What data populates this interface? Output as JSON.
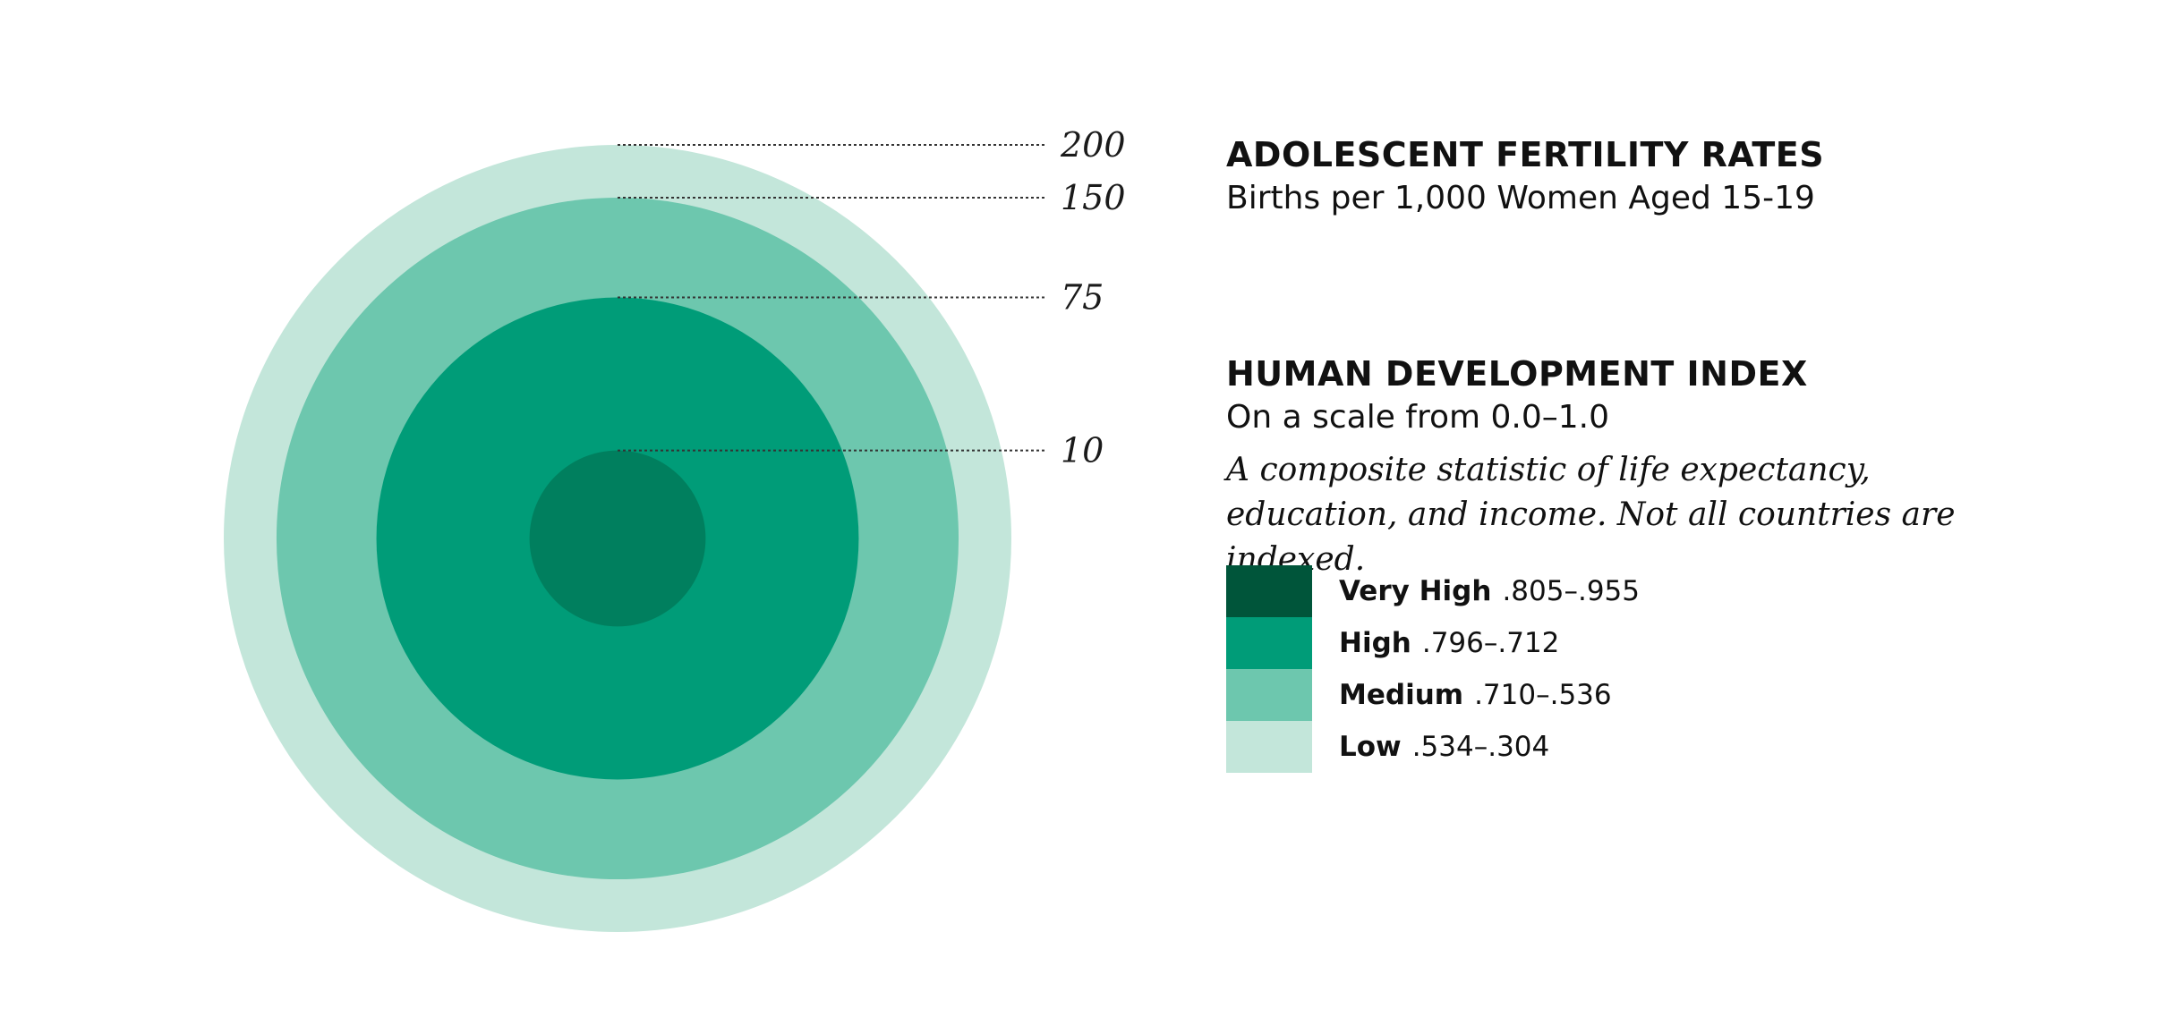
{
  "colors": {
    "very_high": "#00553a",
    "high_inner": "#007f5e",
    "high": "#009c78",
    "medium": "#6dc7ae",
    "low": "#c3e6da"
  },
  "chart_data": {
    "type": "proportional-area (concentric circles)",
    "scale": [
      {
        "value": 200,
        "label": "200"
      },
      {
        "value": 150,
        "label": "150"
      },
      {
        "value": 75,
        "label": "75"
      },
      {
        "value": 10,
        "label": "10"
      }
    ],
    "circle_colors": [
      "#c3e6da",
      "#6dc7ae",
      "#009c78",
      "#007f5e"
    ]
  },
  "fertility": {
    "title": "ADOLESCENT FERTILITY RATES",
    "subtitle": "Births per 1,000 Women Aged 15-19"
  },
  "hdi": {
    "title": "HUMAN DEVELOPMENT INDEX",
    "subtitle": "On a scale from 0.0–1.0",
    "description": "A composite statistic of life expectancy, education, and income. Not all countries are indexed.",
    "legend": [
      {
        "name": "Very High",
        "range": ".805–.955",
        "color": "#00553a"
      },
      {
        "name": "High",
        "range": ".796–.712",
        "color": "#009c78"
      },
      {
        "name": "Medium",
        "range": ".710–.536",
        "color": "#6dc7ae"
      },
      {
        "name": "Low",
        "range": ".534–.304",
        "color": "#c3e6da"
      }
    ]
  }
}
